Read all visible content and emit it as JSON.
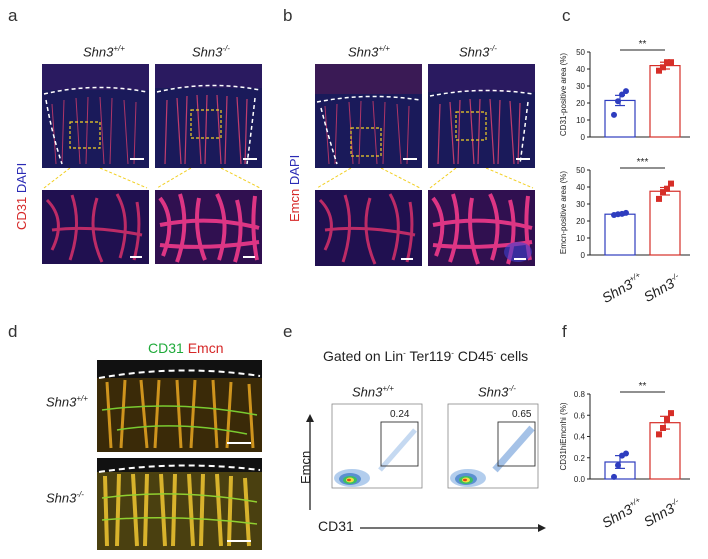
{
  "panels": {
    "a": {
      "letter": "a",
      "stain_label_1": "CD31",
      "stain_label_2": "DAPI",
      "geno_left": "Shn3",
      "geno_left_sup": "+/+",
      "geno_right": "Shn3",
      "geno_right_sup": "-/-"
    },
    "b": {
      "letter": "b",
      "stain_label_1": "Emcn",
      "stain_label_2": "DAPI",
      "geno_left": "Shn3",
      "geno_left_sup": "+/+",
      "geno_right": "Shn3",
      "geno_right_sup": "-/-"
    },
    "c": {
      "letter": "c",
      "xcat1": "Shn3",
      "xcat1_sup": "+/+",
      "xcat2": "Shn3",
      "xcat2_sup": "-/-"
    },
    "d": {
      "letter": "d",
      "legend_1": "CD31",
      "legend_2": "Emcn",
      "geno_top": "Shn3",
      "geno_top_sup": "+/+",
      "geno_bottom": "Shn3",
      "geno_bottom_sup": "-/-"
    },
    "e": {
      "letter": "e",
      "gate_title": "Gated on Lin",
      "gate_title_sup1": "-",
      "gate_title_mid": " Ter119",
      "gate_title_sup2": "-",
      "gate_title_end": " CD45",
      "gate_title_sup3": "-",
      "gate_title_tail": " cells",
      "geno_left": "Shn3",
      "geno_left_sup": "+/+",
      "geno_right": "Shn3",
      "geno_right_sup": "-/-",
      "gate_pct_left": "0.24",
      "gate_pct_right": "0.65",
      "yaxis": "Emcn",
      "xaxis": "CD31"
    },
    "f": {
      "letter": "f",
      "xcat1": "Shn3",
      "xcat1_sup": "+/+",
      "xcat2": "Shn3",
      "xcat2_sup": "-/-"
    }
  },
  "chart_data": [
    {
      "id": "c-top",
      "type": "bar",
      "ylabel": "CD31-positive area (%)",
      "ylim": [
        0,
        50
      ],
      "yticks": [
        0,
        10,
        20,
        30,
        40,
        50
      ],
      "categories": [
        "Shn3+/+",
        "Shn3-/-"
      ],
      "values": [
        21.5,
        42
      ],
      "errors": [
        3,
        2
      ],
      "points": [
        [
          13,
          21,
          25,
          27
        ],
        [
          39,
          41,
          44,
          44
        ]
      ],
      "colors": [
        "#2e3dbf",
        "#d62e28"
      ],
      "significance": "**"
    },
    {
      "id": "c-bottom",
      "type": "bar",
      "ylabel": "Emcn-positive area (%)",
      "ylim": [
        0,
        50
      ],
      "yticks": [
        0,
        10,
        20,
        30,
        40,
        50
      ],
      "categories": [
        "Shn3+/+",
        "Shn3-/-"
      ],
      "values": [
        24,
        37.5
      ],
      "errors": [
        0.6,
        2.2
      ],
      "points": [
        [
          23.5,
          24,
          24.2,
          24.8
        ],
        [
          33,
          37,
          39,
          42
        ]
      ],
      "colors": [
        "#2e3dbf",
        "#d62e28"
      ],
      "significance": "***"
    },
    {
      "id": "f",
      "type": "bar",
      "ylabel": "CD31hiEmcnhi (%)",
      "ylim": [
        0,
        0.8
      ],
      "yticks": [
        0.0,
        0.2,
        0.4,
        0.6,
        0.8
      ],
      "ytick_labels": [
        "0.0",
        "0.2",
        "0.4",
        "0.6",
        "0.8"
      ],
      "categories": [
        "Shn3+/+",
        "Shn3-/-"
      ],
      "values": [
        0.16,
        0.53
      ],
      "errors": [
        0.06,
        0.06
      ],
      "points": [
        [
          0.02,
          0.13,
          0.22,
          0.24
        ],
        [
          0.42,
          0.48,
          0.56,
          0.62
        ]
      ],
      "colors": [
        "#2e3dbf",
        "#d62e28"
      ],
      "significance": "**"
    }
  ]
}
